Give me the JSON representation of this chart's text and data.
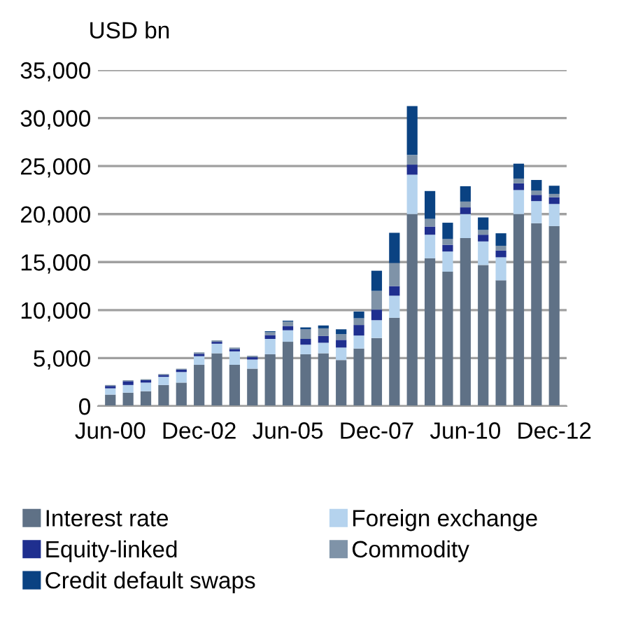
{
  "chart_data": {
    "type": "bar",
    "stacked": true,
    "ylabel": "USD bn",
    "categories": [
      "Jun-00",
      null,
      null,
      null,
      null,
      "Dec-02",
      null,
      null,
      null,
      null,
      "Jun-05",
      null,
      null,
      null,
      null,
      "Dec-07",
      null,
      null,
      null,
      null,
      "Jun-10",
      null,
      null,
      null,
      null,
      "Dec-12"
    ],
    "series": [
      {
        "name": "Interest rate",
        "color": "#5f7186",
        "values": [
          1200,
          1400,
          1550,
          2200,
          2450,
          4300,
          5500,
          4300,
          3900,
          5400,
          6700,
          5400,
          5500,
          4800,
          6000,
          7100,
          9200,
          20000,
          15400,
          14000,
          17500,
          14700,
          13100,
          20000,
          19050,
          18750
        ]
      },
      {
        "name": "Foreign exchange",
        "color": "#b5d3ee",
        "values": [
          650,
          800,
          900,
          850,
          1100,
          900,
          1000,
          1400,
          950,
          1600,
          1200,
          1000,
          1100,
          1300,
          1350,
          1850,
          2300,
          4100,
          2450,
          2100,
          2500,
          2450,
          2400,
          2500,
          2300,
          2300
        ]
      },
      {
        "name": "Equity-linked",
        "color": "#1f2f8f",
        "values": [
          250,
          400,
          250,
          200,
          250,
          250,
          200,
          250,
          250,
          400,
          450,
          600,
          700,
          800,
          1100,
          1100,
          1000,
          1050,
          850,
          700,
          700,
          700,
          700,
          700,
          650,
          700
        ]
      },
      {
        "name": "Commodity",
        "color": "#7f93a8",
        "values": [
          100,
          100,
          100,
          100,
          100,
          150,
          150,
          150,
          150,
          300,
          450,
          1000,
          800,
          600,
          700,
          1950,
          2400,
          1000,
          800,
          600,
          600,
          500,
          500,
          500,
          450,
          350
        ]
      },
      {
        "name": "Credit default swaps",
        "color": "#0a4282",
        "values": [
          0,
          0,
          0,
          0,
          0,
          0,
          0,
          0,
          0,
          100,
          100,
          200,
          300,
          500,
          700,
          2100,
          3150,
          5100,
          2900,
          1700,
          1600,
          1300,
          1300,
          1550,
          1100,
          850
        ]
      }
    ],
    "ylim": [
      0,
      35000
    ],
    "yticks": [
      0,
      {
        "value": 5000,
        "label": "5,000"
      },
      {
        "value": 10000,
        "label": "10,000"
      },
      {
        "value": 15000,
        "label": "15,000"
      },
      {
        "value": 20000,
        "label": "20,000"
      },
      {
        "value": 25000,
        "label": "25,000"
      },
      {
        "value": 30000,
        "label": "30,000"
      },
      {
        "value": 35000,
        "label": "35,000"
      }
    ],
    "grid": "y",
    "legend": "bottom"
  }
}
